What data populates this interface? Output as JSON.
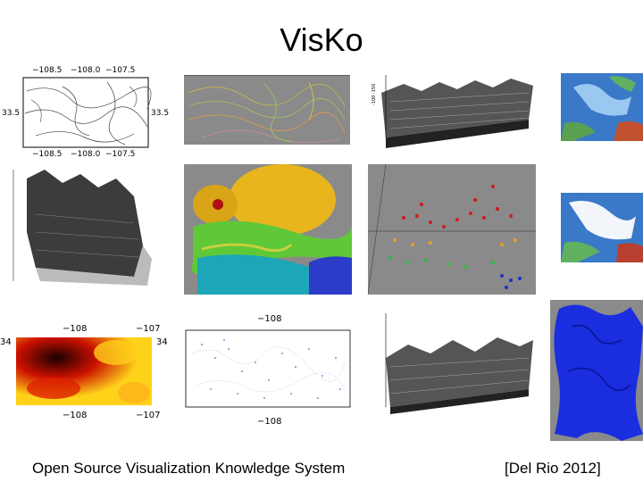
{
  "slide": {
    "title": "VisKo",
    "footer_left": "Open Source Visualization Knowledge System",
    "footer_right": "[Del Rio 2012]"
  },
  "contour_map": {
    "top_ticks": [
      "−108.5",
      "−108.0",
      "−107.5"
    ],
    "bottom_ticks": [
      "−108.5",
      "−108.0",
      "−107.5"
    ],
    "left_tick": "33.5",
    "right_tick": "33.5"
  },
  "heat_map": {
    "top_ticks": [
      "−108",
      "−107"
    ],
    "bottom_ticks": [
      "−108",
      "−107"
    ],
    "left_tick": "34",
    "right_tick": "34"
  },
  "point_map": {
    "top_tick": "−108",
    "bottom_tick": "−108"
  },
  "colors": {
    "heat_dark": "#1a0000",
    "heat_mid": "#cc1100",
    "heat_hot": "#ffd21a",
    "isosurface_yellow": "#e8b51d",
    "contour_gray": "#8a8a8a",
    "point_blue": "#2d3fbf",
    "map_blue": "#3a78c8",
    "volume_blue": "#1a2ee0"
  }
}
